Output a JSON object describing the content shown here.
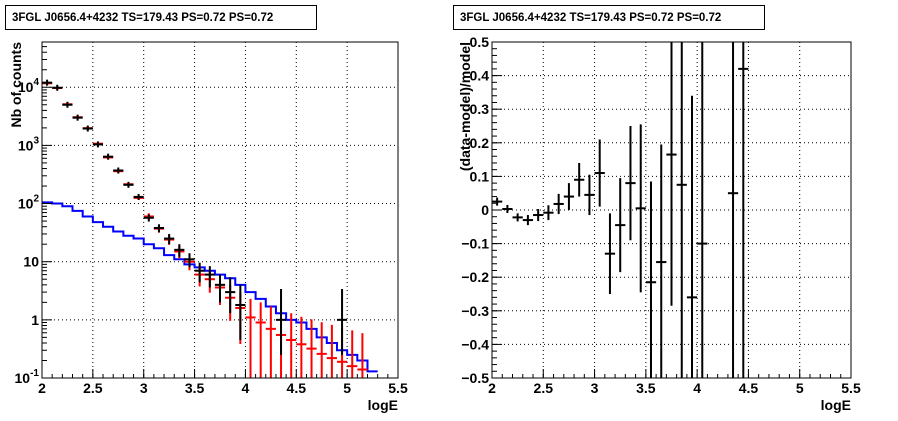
{
  "chart_data": [
    {
      "type": "line",
      "title": "3FGL J0656.4+4232 TS=179.43 PS=0.72 PS=0.72",
      "xlabel": "logE",
      "ylabel": "Nb of counts",
      "xlim": [
        2,
        5.5
      ],
      "ylim": [
        0.1,
        60000
      ],
      "yscale": "log",
      "grid": true,
      "x_ticks": [
        "2",
        "2.5",
        "3",
        "3.5",
        "4",
        "4.5",
        "5",
        "5.5"
      ],
      "y_ticks": [
        {
          "value": 0.1,
          "label": "10^-1"
        },
        {
          "value": 1,
          "label": "1"
        },
        {
          "value": 10,
          "label": "10"
        },
        {
          "value": 100,
          "label": "10^2"
        },
        {
          "value": 1000,
          "label": "10^3"
        },
        {
          "value": 10000,
          "label": "10^4"
        }
      ],
      "series": [
        {
          "kind": "data",
          "color": "#000000",
          "x": [
            2.05,
            2.15,
            2.25,
            2.35,
            2.45,
            2.55,
            2.65,
            2.75,
            2.85,
            2.95,
            3.05,
            3.15,
            3.25,
            3.35,
            3.45,
            3.55,
            3.65,
            3.75,
            3.85,
            3.95,
            4.35,
            4.95
          ],
          "y": [
            12000,
            9800,
            5000,
            3000,
            1950,
            1040,
            640,
            370,
            210,
            130,
            57,
            38,
            25,
            16,
            11,
            7,
            6,
            4,
            3,
            1.8,
            1,
            1
          ],
          "err_low": [
            0,
            0,
            0,
            0,
            0,
            0,
            0,
            0,
            0,
            0,
            8,
            6,
            5,
            4,
            3,
            2.6,
            2.4,
            2,
            1.7,
            1.35,
            1,
            1
          ],
          "err_high": [
            0,
            0,
            0,
            0,
            0,
            0,
            0,
            0,
            0,
            0,
            8,
            6,
            5,
            4,
            3,
            2.6,
            2.4,
            2,
            2.4,
            2.2,
            2.4,
            2.4
          ]
        },
        {
          "kind": "model+error",
          "color": "#ff0000",
          "x": [
            2.05,
            2.15,
            2.25,
            2.35,
            2.45,
            2.55,
            2.65,
            2.75,
            2.85,
            2.95,
            3.05,
            3.15,
            3.25,
            3.35,
            3.45,
            3.55,
            3.65,
            3.75,
            3.85,
            3.95,
            4.05,
            4.15,
            4.25,
            4.35,
            4.45,
            4.55,
            4.65,
            4.75,
            4.85,
            4.95,
            5.05,
            5.15
          ],
          "y": [
            11700,
            9700,
            5100,
            3050,
            1980,
            1070,
            620,
            360,
            215,
            125,
            60,
            37,
            24,
            15,
            10,
            6,
            5,
            3.6,
            2.4,
            1.6,
            1.1,
            0.9,
            0.7,
            0.55,
            0.45,
            0.38,
            0.32,
            0.26,
            0.22,
            0.19,
            0.16,
            0.14
          ],
          "err_low": [
            0,
            0,
            0,
            0,
            0,
            0,
            0,
            0,
            0,
            0,
            0,
            0,
            0,
            0,
            0,
            0,
            0,
            0,
            0,
            0,
            0,
            0,
            0,
            0,
            0,
            0,
            0,
            0,
            0,
            0,
            0,
            0
          ],
          "err_high": [
            0,
            0,
            0,
            0,
            0,
            0,
            0,
            0,
            0,
            0,
            8,
            6,
            5,
            4,
            3.2,
            2.5,
            2.3,
            2,
            1.6,
            1.35,
            1.2,
            1.1,
            1,
            0.9,
            0.85,
            0.75,
            0.7,
            0.65,
            0.6,
            0.55,
            0.5,
            0.45
          ]
        },
        {
          "kind": "background",
          "color": "#0000ff",
          "x": [
            2.05,
            2.15,
            2.25,
            2.35,
            2.45,
            2.55,
            2.65,
            2.75,
            2.85,
            2.95,
            3.05,
            3.15,
            3.25,
            3.35,
            3.45,
            3.55,
            3.65,
            3.75,
            3.85,
            3.95,
            4.05,
            4.15,
            4.25,
            4.35,
            4.45,
            4.55,
            4.65,
            4.75,
            4.85,
            4.95,
            5.05,
            5.15,
            5.25
          ],
          "y": [
            105,
            100,
            90,
            75,
            60,
            48,
            40,
            33,
            28,
            25,
            20,
            17,
            13,
            11,
            9,
            8,
            7,
            6,
            5.2,
            4,
            3,
            2.3,
            1.7,
            1.3,
            1,
            0.9,
            0.7,
            0.5,
            0.4,
            0.3,
            0.25,
            0.2,
            0.13
          ]
        }
      ]
    },
    {
      "type": "scatter",
      "title": "3FGL J0656.4+4232 TS=179.43 PS=0.72 PS=0.72",
      "xlabel": "logE",
      "ylabel": "(data-model)/model",
      "xlim": [
        2,
        5.5
      ],
      "ylim": [
        -0.5,
        0.5
      ],
      "grid": true,
      "x_ticks": [
        "2",
        "2.5",
        "3",
        "3.5",
        "4",
        "4.5",
        "5",
        "5.5"
      ],
      "y_ticks": [
        "−0.5",
        "−0.4",
        "−0.3",
        "−0.2",
        "−0.1",
        "0",
        "0.1",
        "0.2",
        "0.3",
        "0.4",
        "0.5"
      ],
      "series": [
        {
          "color": "#000000",
          "x": [
            2.05,
            2.15,
            2.25,
            2.35,
            2.45,
            2.55,
            2.65,
            2.75,
            2.85,
            2.95,
            3.05,
            3.15,
            3.25,
            3.35,
            3.45,
            3.55,
            3.65,
            3.75,
            3.85,
            3.95,
            4.05,
            4.35,
            4.45
          ],
          "y": [
            0.025,
            0.003,
            -0.022,
            -0.03,
            -0.015,
            -0.008,
            0.018,
            0.04,
            0.09,
            0.045,
            0.11,
            -0.13,
            -0.045,
            0.08,
            0.005,
            -0.215,
            -0.155,
            0.165,
            0.075,
            -0.26,
            -0.1,
            0.05,
            0.42
          ],
          "err": [
            0.012,
            0.012,
            0.012,
            0.015,
            0.018,
            0.022,
            0.03,
            0.04,
            0.05,
            0.06,
            0.1,
            0.12,
            0.14,
            0.17,
            0.25,
            0.3,
            0.35,
            0.45,
            0.6,
            0.6,
            0.8,
            1.0,
            1.0
          ]
        }
      ]
    }
  ]
}
